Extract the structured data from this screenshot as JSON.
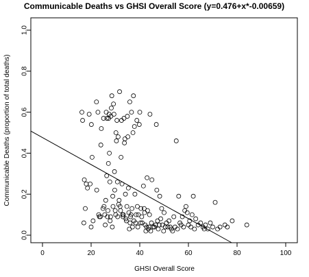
{
  "chart_data": {
    "type": "scatter",
    "title": "Communicable Deaths vs GHSI Overall Score (y=0.476+x*-0.00659)",
    "xlabel": "GHSI Overall Score",
    "ylabel": "Communicable Deaths (proportion of total deaths)",
    "xlim": [
      0,
      100
    ],
    "ylim": [
      0,
      1.0
    ],
    "x_ticks": [
      0,
      20,
      40,
      60,
      80,
      100
    ],
    "y_ticks": [
      0.0,
      0.2,
      0.4,
      0.6,
      0.8,
      1.0
    ],
    "x_tick_labels": [
      "0",
      "20",
      "40",
      "60",
      "80",
      "100"
    ],
    "y_tick_labels": [
      "0.0",
      "0.2",
      "0.4",
      "0.6",
      "0.8",
      "1.0"
    ],
    "grid": false,
    "regression": {
      "intercept": 0.476,
      "slope": -0.00659
    },
    "points": [
      [
        16.2,
        0.6
      ],
      [
        16.5,
        0.56
      ],
      [
        17.0,
        0.06
      ],
      [
        17.2,
        0.27
      ],
      [
        17.6,
        0.13
      ],
      [
        18.0,
        0.25
      ],
      [
        18.5,
        0.23
      ],
      [
        19.2,
        0.59
      ],
      [
        19.6,
        0.25
      ],
      [
        20.0,
        0.04
      ],
      [
        20.1,
        0.54
      ],
      [
        20.4,
        0.38
      ],
      [
        20.8,
        0.07
      ],
      [
        22.2,
        0.65
      ],
      [
        22.3,
        0.22
      ],
      [
        22.8,
        0.6
      ],
      [
        23.1,
        0.1
      ],
      [
        23.4,
        0.09
      ],
      [
        23.8,
        0.09
      ],
      [
        24.0,
        0.44
      ],
      [
        24.2,
        0.52
      ],
      [
        24.9,
        0.13
      ],
      [
        25.1,
        0.57
      ],
      [
        25.3,
        0.14
      ],
      [
        25.6,
        0.1
      ],
      [
        25.8,
        0.05
      ],
      [
        26.0,
        0.17
      ],
      [
        26.2,
        0.6
      ],
      [
        26.4,
        0.29
      ],
      [
        26.5,
        0.57
      ],
      [
        26.7,
        0.09
      ],
      [
        26.9,
        0.12
      ],
      [
        27.1,
        0.35
      ],
      [
        27.2,
        0.57
      ],
      [
        27.4,
        0.59
      ],
      [
        27.5,
        0.4
      ],
      [
        27.7,
        0.26
      ],
      [
        27.8,
        0.07
      ],
      [
        28.0,
        0.09
      ],
      [
        28.1,
        0.58
      ],
      [
        28.3,
        0.62
      ],
      [
        28.5,
        0.68
      ],
      [
        28.7,
        0.04
      ],
      [
        28.9,
        0.19
      ],
      [
        29.0,
        0.14
      ],
      [
        29.2,
        0.64
      ],
      [
        29.4,
        0.59
      ],
      [
        29.6,
        0.31
      ],
      [
        29.7,
        0.22
      ],
      [
        29.9,
        0.12
      ],
      [
        30.1,
        0.1
      ],
      [
        30.2,
        0.5
      ],
      [
        30.4,
        0.46
      ],
      [
        30.6,
        0.56
      ],
      [
        30.8,
        0.26
      ],
      [
        30.9,
        0.09
      ],
      [
        31.1,
        0.48
      ],
      [
        31.3,
        0.15
      ],
      [
        31.5,
        0.17
      ],
      [
        31.7,
        0.7
      ],
      [
        31.9,
        0.14
      ],
      [
        32.1,
        0.12
      ],
      [
        32.3,
        0.38
      ],
      [
        32.5,
        0.56
      ],
      [
        32.7,
        0.25
      ],
      [
        32.9,
        0.1
      ],
      [
        33.1,
        0.09
      ],
      [
        33.3,
        0.1
      ],
      [
        33.5,
        0.57
      ],
      [
        33.7,
        0.45
      ],
      [
        33.9,
        0.47
      ],
      [
        34.1,
        0.2
      ],
      [
        34.3,
        0.08
      ],
      [
        34.5,
        0.07
      ],
      [
        34.7,
        0.14
      ],
      [
        34.9,
        0.58
      ],
      [
        35.1,
        0.48
      ],
      [
        35.3,
        0.23
      ],
      [
        35.5,
        0.11
      ],
      [
        35.7,
        0.03
      ],
      [
        35.9,
        0.65
      ],
      [
        36.0,
        0.06
      ],
      [
        36.2,
        0.09
      ],
      [
        36.4,
        0.1
      ],
      [
        36.6,
        0.6
      ],
      [
        36.8,
        0.13
      ],
      [
        37.0,
        0.04
      ],
      [
        37.2,
        0.5
      ],
      [
        37.4,
        0.68
      ],
      [
        37.6,
        0.07
      ],
      [
        37.8,
        0.53
      ],
      [
        38.0,
        0.2
      ],
      [
        38.3,
        0.06
      ],
      [
        38.5,
        0.1
      ],
      [
        38.8,
        0.56
      ],
      [
        39.0,
        0.14
      ],
      [
        39.2,
        0.04
      ],
      [
        39.4,
        0.1
      ],
      [
        39.8,
        0.54
      ],
      [
        40.0,
        0.6
      ],
      [
        40.3,
        0.06
      ],
      [
        40.5,
        0.13
      ],
      [
        40.8,
        0.09
      ],
      [
        41.0,
        0.06
      ],
      [
        41.5,
        0.24
      ],
      [
        41.8,
        0.13
      ],
      [
        42.0,
        0.11
      ],
      [
        42.2,
        0.05
      ],
      [
        42.5,
        0.02
      ],
      [
        42.8,
        0.04
      ],
      [
        43.0,
        0.28
      ],
      [
        43.2,
        0.12
      ],
      [
        43.5,
        0.03
      ],
      [
        43.8,
        0.04
      ],
      [
        44.0,
        0.1
      ],
      [
        44.2,
        0.59
      ],
      [
        44.5,
        0.02
      ],
      [
        44.8,
        0.06
      ],
      [
        45.0,
        0.27
      ],
      [
        45.5,
        0.04
      ],
      [
        46.0,
        0.04
      ],
      [
        46.5,
        0.05
      ],
      [
        46.8,
        0.54
      ],
      [
        47.0,
        0.22
      ],
      [
        47.3,
        0.07
      ],
      [
        47.6,
        0.03
      ],
      [
        48.0,
        0.05
      ],
      [
        48.2,
        0.19
      ],
      [
        48.6,
        0.08
      ],
      [
        49.0,
        0.13
      ],
      [
        49.3,
        0.05
      ],
      [
        49.8,
        0.02
      ],
      [
        50.0,
        0.11
      ],
      [
        50.5,
        0.04
      ],
      [
        51.0,
        0.06
      ],
      [
        51.5,
        0.04
      ],
      [
        52.0,
        0.07
      ],
      [
        52.5,
        0.04
      ],
      [
        53.0,
        0.03
      ],
      [
        53.5,
        0.02
      ],
      [
        54.0,
        0.09
      ],
      [
        54.5,
        0.04
      ],
      [
        55.0,
        0.46
      ],
      [
        55.5,
        0.03
      ],
      [
        56.0,
        0.19
      ],
      [
        56.5,
        0.06
      ],
      [
        57.0,
        0.05
      ],
      [
        57.5,
        0.09
      ],
      [
        58.0,
        0.04
      ],
      [
        58.5,
        0.12
      ],
      [
        59.0,
        0.14
      ],
      [
        59.5,
        0.11
      ],
      [
        60.0,
        0.05
      ],
      [
        60.5,
        0.07
      ],
      [
        61.0,
        0.04
      ],
      [
        61.5,
        0.1
      ],
      [
        62.0,
        0.19
      ],
      [
        62.5,
        0.03
      ],
      [
        63.0,
        0.08
      ],
      [
        64.0,
        0.05
      ],
      [
        65.0,
        0.06
      ],
      [
        66.0,
        0.04
      ],
      [
        66.5,
        0.03
      ],
      [
        67.0,
        0.05
      ],
      [
        68.0,
        0.03
      ],
      [
        69.0,
        0.06
      ],
      [
        70.0,
        0.04
      ],
      [
        71.0,
        0.16
      ],
      [
        72.0,
        0.03
      ],
      [
        73.0,
        0.04
      ],
      [
        75.0,
        0.05
      ],
      [
        76.0,
        0.04
      ],
      [
        78.0,
        0.07
      ],
      [
        84.0,
        0.05
      ]
    ]
  }
}
